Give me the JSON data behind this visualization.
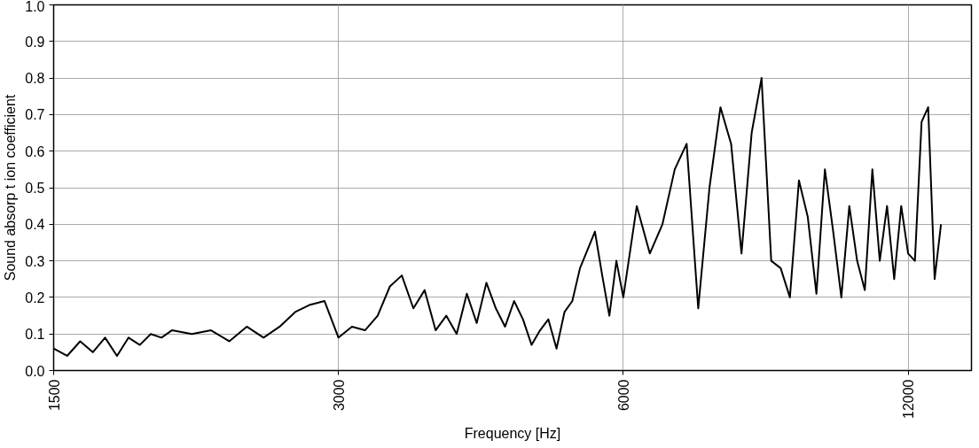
{
  "chart_data": {
    "type": "line",
    "xlabel": "Frequency [Hz]",
    "ylabel": "Sound absorp t ion coefficient",
    "log": "x",
    "xlim": [
      1500,
      14000
    ],
    "xticks": [
      1500,
      3000,
      6000,
      12000
    ],
    "ylim": [
      0,
      1
    ],
    "yticks": [
      {
        "value": 0,
        "label": "0.0"
      },
      0.1,
      0.2,
      0.3,
      0.4,
      0.5,
      0.6,
      0.7,
      0.8,
      0.9,
      {
        "value": 1,
        "label": "1.0"
      }
    ],
    "grid": true,
    "marker": "none",
    "line_style": "solid",
    "series": [
      {
        "color": "#000000",
        "x": [
          1500,
          1550,
          1600,
          1650,
          1700,
          1750,
          1800,
          1850,
          1900,
          1950,
          2000,
          2100,
          2200,
          2300,
          2400,
          2500,
          2600,
          2700,
          2800,
          2900,
          3000,
          3100,
          3200,
          3300,
          3400,
          3500,
          3600,
          3700,
          3800,
          3900,
          4000,
          4100,
          4200,
          4300,
          4400,
          4500,
          4600,
          4700,
          4800,
          4900,
          5000,
          5100,
          5200,
          5300,
          5400,
          5500,
          5600,
          5700,
          5800,
          5900,
          6000,
          6200,
          6400,
          6600,
          6800,
          7000,
          7200,
          7400,
          7600,
          7800,
          8000,
          8200,
          8400,
          8600,
          8800,
          9000,
          9200,
          9400,
          9600,
          9800,
          10000,
          10200,
          10400,
          10600,
          10800,
          11000,
          11200,
          11400,
          11600,
          11800,
          12000,
          12200,
          12400,
          12600,
          12800,
          13000
        ],
        "values": [
          0.06,
          0.04,
          0.08,
          0.05,
          0.09,
          0.04,
          0.09,
          0.07,
          0.1,
          0.09,
          0.11,
          0.1,
          0.11,
          0.08,
          0.12,
          0.09,
          0.12,
          0.16,
          0.18,
          0.19,
          0.09,
          0.12,
          0.11,
          0.15,
          0.23,
          0.26,
          0.17,
          0.22,
          0.11,
          0.15,
          0.1,
          0.21,
          0.13,
          0.24,
          0.17,
          0.12,
          0.19,
          0.14,
          0.07,
          0.11,
          0.14,
          0.06,
          0.16,
          0.19,
          0.28,
          0.33,
          0.38,
          0.26,
          0.15,
          0.3,
          0.2,
          0.45,
          0.32,
          0.4,
          0.55,
          0.62,
          0.17,
          0.5,
          0.72,
          0.62,
          0.32,
          0.65,
          0.8,
          0.3,
          0.28,
          0.2,
          0.52,
          0.42,
          0.21,
          0.55,
          0.38,
          0.2,
          0.45,
          0.3,
          0.22,
          0.55,
          0.3,
          0.45,
          0.25,
          0.45,
          0.32,
          0.3,
          0.68,
          0.72,
          0.25,
          0.4
        ]
      }
    ]
  }
}
